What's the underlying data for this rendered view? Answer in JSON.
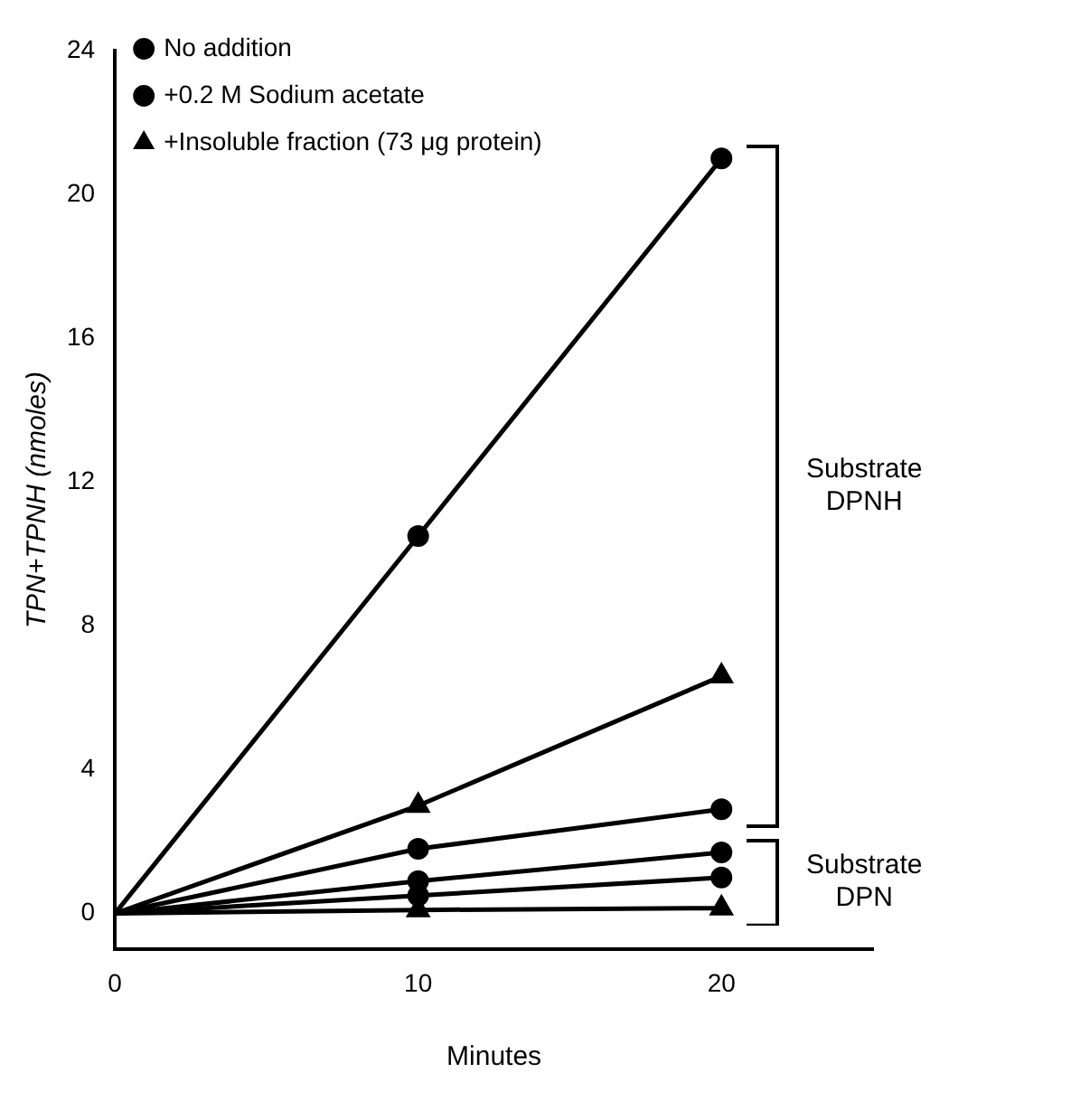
{
  "chart_data": {
    "type": "line",
    "xlabel": "Minutes",
    "ylabel": "TPN+TPNH (nmoles)",
    "x": [
      0,
      10,
      20
    ],
    "xlim": [
      0,
      25
    ],
    "xticks": [
      0,
      10,
      20
    ],
    "ylim": [
      -1,
      24
    ],
    "yticks": [
      0,
      4,
      8,
      12,
      16,
      20,
      24
    ],
    "grid": false,
    "legend": "top left",
    "line_style": "solid",
    "annotations": [
      "Substrate DPNH",
      "Substrate DPN"
    ],
    "series": [
      {
        "name": "No addition",
        "color": "#000000",
        "marker": "circle",
        "values": [
          0,
          1.8,
          2.9
        ]
      },
      {
        "name": "+0.2 M Sodium acetate",
        "color": "#000000",
        "marker": "circle",
        "values": [
          0,
          10.5,
          21
        ]
      },
      {
        "name": "+Insoluble fraction (73 μg protein)",
        "color": "#000000",
        "marker": "triangle",
        "values": [
          0,
          3.0,
          6.6
        ]
      },
      {
        "color": "#000000",
        "marker": "circle",
        "values": [
          0,
          0.5,
          1.0
        ]
      },
      {
        "color": "#000000",
        "marker": "circle",
        "values": [
          0,
          0.9,
          1.7
        ]
      },
      {
        "color": "#000000",
        "marker": "triangle",
        "values": [
          0,
          0.1,
          0.15
        ]
      }
    ]
  }
}
